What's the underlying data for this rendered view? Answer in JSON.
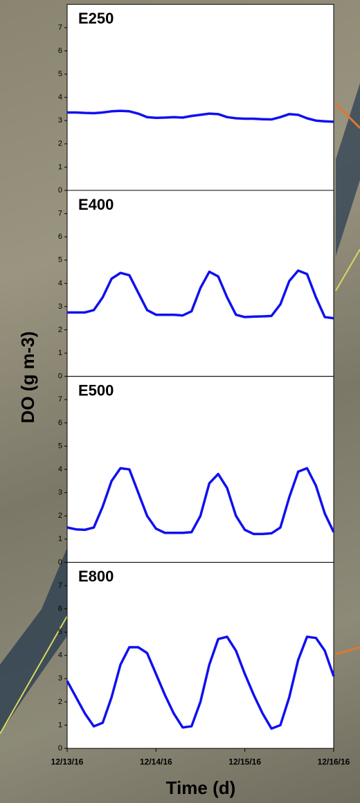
{
  "chart_data": [
    {
      "type": "line",
      "title": "E250",
      "ylabel": "DO (g m-3)",
      "color": "#1010f0",
      "xlim": [
        0,
        3
      ],
      "ylim": [
        0,
        8
      ],
      "yticks": [
        0,
        1,
        2,
        3,
        4,
        5,
        6,
        7
      ],
      "x": [
        0,
        0.1,
        0.2,
        0.3,
        0.4,
        0.5,
        0.6,
        0.7,
        0.8,
        0.9,
        1,
        1.1,
        1.2,
        1.3,
        1.4,
        1.5,
        1.6,
        1.7,
        1.8,
        1.9,
        2,
        2.1,
        2.2,
        2.3,
        2.4,
        2.5,
        2.6,
        2.7,
        2.8,
        2.9,
        3
      ],
      "values": [
        3.35,
        3.35,
        3.33,
        3.32,
        3.35,
        3.4,
        3.42,
        3.4,
        3.3,
        3.15,
        3.12,
        3.13,
        3.15,
        3.13,
        3.2,
        3.25,
        3.3,
        3.28,
        3.15,
        3.1,
        3.08,
        3.08,
        3.06,
        3.05,
        3.15,
        3.28,
        3.25,
        3.1,
        3.0,
        2.97,
        2.95
      ]
    },
    {
      "type": "line",
      "title": "E400",
      "color": "#1010f0",
      "xlim": [
        0,
        3
      ],
      "ylim": [
        0,
        8
      ],
      "yticks": [
        0,
        1,
        2,
        3,
        4,
        5,
        6,
        7
      ],
      "x": [
        0,
        0.1,
        0.2,
        0.3,
        0.4,
        0.5,
        0.6,
        0.7,
        0.8,
        0.9,
        1,
        1.1,
        1.2,
        1.3,
        1.4,
        1.5,
        1.6,
        1.7,
        1.8,
        1.9,
        2,
        2.1,
        2.2,
        2.3,
        2.4,
        2.5,
        2.6,
        2.7,
        2.8,
        2.9,
        3
      ],
      "values": [
        2.75,
        2.75,
        2.75,
        2.85,
        3.4,
        4.2,
        4.45,
        4.35,
        3.6,
        2.85,
        2.65,
        2.65,
        2.65,
        2.62,
        2.8,
        3.8,
        4.5,
        4.3,
        3.4,
        2.65,
        2.55,
        2.57,
        2.58,
        2.6,
        3.1,
        4.1,
        4.55,
        4.4,
        3.4,
        2.55,
        2.5
      ]
    },
    {
      "type": "line",
      "title": "E500",
      "color": "#1010f0",
      "xlim": [
        0,
        3
      ],
      "ylim": [
        0,
        8
      ],
      "yticks": [
        0,
        1,
        2,
        3,
        4,
        5,
        6,
        7
      ],
      "x": [
        0,
        0.1,
        0.2,
        0.3,
        0.4,
        0.5,
        0.6,
        0.7,
        0.8,
        0.9,
        1,
        1.1,
        1.2,
        1.3,
        1.4,
        1.5,
        1.6,
        1.7,
        1.8,
        1.9,
        2,
        2.1,
        2.2,
        2.3,
        2.4,
        2.5,
        2.6,
        2.7,
        2.8,
        2.9,
        3
      ],
      "values": [
        1.5,
        1.42,
        1.4,
        1.5,
        2.4,
        3.5,
        4.05,
        4.0,
        3.0,
        2.0,
        1.45,
        1.27,
        1.27,
        1.27,
        1.3,
        2.0,
        3.4,
        3.8,
        3.2,
        2.0,
        1.4,
        1.22,
        1.22,
        1.25,
        1.5,
        2.8,
        3.9,
        4.05,
        3.3,
        2.1,
        1.3
      ]
    },
    {
      "type": "line",
      "title": "E800",
      "xlabel": "Time (d)",
      "color": "#1010f0",
      "xlim": [
        0,
        3
      ],
      "ylim": [
        0,
        8
      ],
      "yticks": [
        0,
        1,
        2,
        3,
        4,
        5,
        6,
        7
      ],
      "xticks": [
        {
          "value": 0,
          "label": "12/13/16"
        },
        {
          "value": 1,
          "label": "12/14/16"
        },
        {
          "value": 2,
          "label": "12/15/16"
        },
        {
          "value": 3,
          "label": "12/16/16"
        }
      ],
      "x": [
        0,
        0.1,
        0.2,
        0.3,
        0.4,
        0.5,
        0.6,
        0.7,
        0.8,
        0.9,
        1,
        1.1,
        1.2,
        1.3,
        1.4,
        1.5,
        1.6,
        1.7,
        1.8,
        1.9,
        2,
        2.1,
        2.2,
        2.3,
        2.4,
        2.5,
        2.6,
        2.7,
        2.8,
        2.9,
        3
      ],
      "values": [
        2.9,
        2.2,
        1.5,
        0.95,
        1.1,
        2.2,
        3.6,
        4.35,
        4.35,
        4.1,
        3.2,
        2.3,
        1.5,
        0.9,
        0.95,
        2.0,
        3.6,
        4.7,
        4.8,
        4.2,
        3.2,
        2.3,
        1.5,
        0.85,
        1.0,
        2.2,
        3.8,
        4.8,
        4.75,
        4.2,
        3.1
      ]
    }
  ]
}
